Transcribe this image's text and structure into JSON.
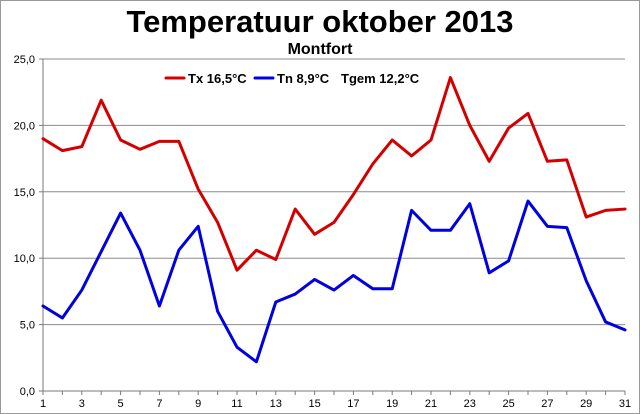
{
  "chart_data": {
    "type": "line",
    "title": "Temperatuur oktober 2013",
    "subtitle": "Montfort",
    "xlabel": "",
    "ylabel": "",
    "x": [
      1,
      2,
      3,
      4,
      5,
      6,
      7,
      8,
      9,
      10,
      11,
      12,
      13,
      14,
      15,
      16,
      17,
      18,
      19,
      20,
      21,
      22,
      23,
      24,
      25,
      26,
      27,
      28,
      29,
      30,
      31
    ],
    "x_tick_labels": [
      "1",
      "3",
      "5",
      "7",
      "9",
      "11",
      "13",
      "15",
      "17",
      "19",
      "21",
      "23",
      "25",
      "27",
      "29",
      "31"
    ],
    "ylim": [
      0,
      25
    ],
    "y_tick_labels": [
      "0,0",
      "5,0",
      "10,0",
      "15,0",
      "20,0",
      "25,0"
    ],
    "grid": true,
    "legend_position": "top-center",
    "legend_extra_text": "Tgem 12,2°C",
    "series": [
      {
        "name": "Tx 16,5°C",
        "color": "#d40000",
        "values": [
          19.0,
          18.1,
          18.4,
          21.9,
          18.9,
          18.2,
          18.8,
          18.8,
          15.2,
          12.7,
          9.1,
          10.6,
          9.9,
          13.7,
          11.8,
          12.7,
          14.8,
          17.1,
          18.9,
          17.7,
          18.9,
          23.6,
          20.0,
          17.3,
          19.8,
          20.9,
          17.3,
          17.4,
          13.1,
          13.6,
          13.7
        ]
      },
      {
        "name": "Tn 8,9°C",
        "color": "#0000e0",
        "values": [
          6.4,
          5.5,
          7.6,
          10.5,
          13.4,
          10.6,
          6.4,
          10.6,
          12.4,
          6.0,
          3.3,
          2.2,
          6.7,
          7.3,
          8.4,
          7.6,
          8.7,
          7.7,
          7.7,
          13.6,
          12.1,
          12.1,
          14.1,
          8.9,
          9.8,
          14.3,
          12.4,
          12.3,
          8.3,
          5.2,
          4.6
        ]
      }
    ]
  }
}
